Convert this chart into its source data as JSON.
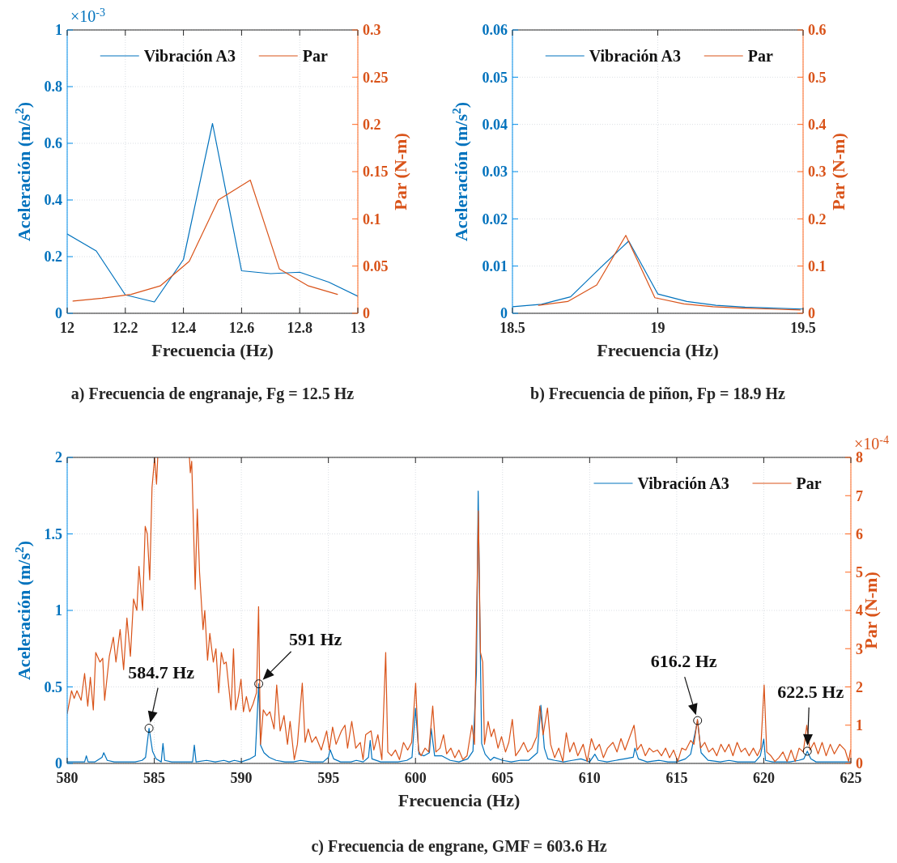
{
  "chart_data": [
    {
      "type": "line",
      "title": "a) Frecuencia de engranaje, Fg = 12.5 Hz",
      "xlabel": "Frecuencia (Hz)",
      "ylabel": "Aceleración (m/s$^{2}$)",
      "y2label": "Par (N-m)",
      "xlim": [
        12,
        13
      ],
      "xticks": [
        12,
        12.2,
        12.4,
        12.6,
        12.8,
        13
      ],
      "ylim": [
        0,
        1
      ],
      "yticks": [
        0,
        0.2,
        0.4,
        0.6,
        0.8,
        1
      ],
      "y2lim": [
        0,
        0.3
      ],
      "y2ticks": [
        0,
        0.05,
        0.1,
        0.15,
        0.2,
        0.25,
        0.3
      ],
      "grid": true,
      "legend": "top",
      "annotations": [
        "×10$^{-3}$"
      ],
      "series": [
        {
          "name": "Vibración A3",
          "color": "#0072bd",
          "x": [
            12.0,
            12.1,
            12.2,
            12.3,
            12.4,
            12.5,
            12.6,
            12.7,
            12.8,
            12.9,
            13.0
          ],
          "values": [
            0.28,
            0.22,
            0.065,
            0.04,
            0.19,
            0.67,
            0.15,
            0.14,
            0.145,
            0.11,
            0.06
          ]
        },
        {
          "name": "Par",
          "color": "#d95319",
          "axis": "y2",
          "x": [
            12.02,
            12.12,
            12.22,
            12.32,
            12.42,
            12.52,
            12.63,
            12.73,
            12.83,
            12.93
          ],
          "values": [
            0.013,
            0.016,
            0.02,
            0.029,
            0.055,
            0.12,
            0.141,
            0.047,
            0.029,
            0.02
          ]
        }
      ]
    },
    {
      "type": "line",
      "title": "b) Frecuencia de piñon, Fp = 18.9 Hz",
      "xlabel": "Frecuencia (Hz)",
      "ylabel": "Aceleración (m/s$^{2}$)",
      "y2label": "Par (N-m)",
      "xlim": [
        18.5,
        19.5
      ],
      "xticks": [
        18.5,
        19,
        19.5
      ],
      "ylim": [
        0,
        0.06
      ],
      "yticks": [
        0,
        0.01,
        0.02,
        0.03,
        0.04,
        0.05,
        0.06
      ],
      "y2lim": [
        0,
        0.6
      ],
      "y2ticks": [
        0,
        0.1,
        0.2,
        0.3,
        0.4,
        0.5,
        0.6
      ],
      "grid": true,
      "legend": "top",
      "series": [
        {
          "name": "Vibración A3",
          "color": "#0072bd",
          "x": [
            18.5,
            18.6,
            18.7,
            18.8,
            18.9,
            19.0,
            19.1,
            19.2,
            19.3,
            19.4,
            19.5
          ],
          "values": [
            0.0014,
            0.0019,
            0.0035,
            0.0095,
            0.0153,
            0.0041,
            0.0025,
            0.0017,
            0.0013,
            0.0011,
            0.0009
          ]
        },
        {
          "name": "Par",
          "color": "#d95319",
          "axis": "y2",
          "x": [
            18.59,
            18.69,
            18.79,
            18.89,
            18.99,
            19.09,
            19.19,
            19.29,
            19.39,
            19.49
          ],
          "values": [
            0.017,
            0.025,
            0.06,
            0.165,
            0.033,
            0.02,
            0.014,
            0.011,
            0.009,
            0.007
          ]
        }
      ]
    },
    {
      "type": "line",
      "title": "c) Frecuencia de engrane, GMF = 603.6 Hz",
      "xlabel": "Frecuencia (Hz)",
      "ylabel": "Aceleración (m/s$^{2}$)",
      "y2label": "Par (N-m)",
      "xlim": [
        580,
        625
      ],
      "xticks": [
        580,
        585,
        590,
        595,
        600,
        605,
        610,
        615,
        620,
        625
      ],
      "ylim": [
        0,
        2
      ],
      "yticks": [
        0,
        0.5,
        1,
        1.5,
        2
      ],
      "y2lim": [
        0,
        8
      ],
      "y2ticks": [
        0,
        1,
        2,
        3,
        4,
        5,
        6,
        7,
        8
      ],
      "grid": true,
      "legend": "top right",
      "annotations": [
        "×10$^{-4}$",
        {
          "text": "584.7 Hz",
          "x": 584.7,
          "y": 0.23
        },
        {
          "text": "591 Hz",
          "x": 591.0,
          "y": 0.52
        },
        {
          "text": "616.2 Hz",
          "x": 616.2,
          "y": 0.28
        },
        {
          "text": "622.5 Hz",
          "x": 622.5,
          "y": 0.08
        }
      ],
      "series": [
        {
          "name": "Vibración A3",
          "color": "#0072bd",
          "x": [
            580.0,
            580.5,
            581.0,
            581.1,
            581.2,
            581.6,
            582.0,
            582.1,
            582.3,
            582.7,
            583.3,
            583.9,
            584.3,
            584.5,
            584.7,
            584.9,
            585.1,
            585.4,
            585.5,
            585.6,
            586.0,
            586.5,
            587.2,
            587.3,
            587.4,
            588.0,
            588.5,
            589.0,
            589.3,
            589.6,
            590.0,
            590.5,
            590.8,
            591.0,
            591.1,
            591.3,
            591.6,
            592.0,
            592.5,
            593.0,
            593.4,
            594.0,
            594.7,
            595.0,
            595.1,
            595.3,
            595.7,
            596.3,
            596.6,
            597.0,
            597.3,
            597.4,
            597.5,
            598.0,
            598.5,
            599.0,
            599.5,
            599.8,
            600.0,
            600.2,
            600.5,
            600.8,
            600.9,
            601.1,
            601.5,
            602.0,
            602.5,
            603.0,
            603.3,
            603.5,
            603.6,
            603.7,
            603.8,
            604.0,
            604.3,
            604.5,
            605.0,
            605.5,
            606.0,
            606.5,
            607.0,
            607.2,
            607.4,
            607.6,
            608.0,
            608.5,
            609.0,
            609.5,
            610.0,
            610.3,
            610.5,
            611.0,
            611.5,
            612.0,
            612.5,
            612.6,
            612.8,
            613.3,
            614.0,
            614.5,
            615.0,
            615.5,
            615.8,
            616.2,
            616.4,
            616.8,
            617.5,
            618.0,
            618.5,
            619.0,
            619.5,
            619.8,
            620.0,
            620.1,
            620.5,
            621.0,
            621.5,
            622.0,
            622.3,
            622.5,
            622.7,
            623.0,
            623.5,
            624.0,
            624.5,
            625.0
          ],
          "values": [
            0.01,
            0.01,
            0.01,
            0.05,
            0.01,
            0.01,
            0.04,
            0.07,
            0.02,
            0.01,
            0.01,
            0.01,
            0.02,
            0.04,
            0.23,
            0.08,
            0.03,
            0.01,
            0.13,
            0.02,
            0.01,
            0.01,
            0.01,
            0.12,
            0.01,
            0.02,
            0.01,
            0.02,
            0.01,
            0.02,
            0.01,
            0.03,
            0.05,
            0.52,
            0.12,
            0.07,
            0.04,
            0.02,
            0.01,
            0.01,
            0.02,
            0.01,
            0.01,
            0.04,
            0.09,
            0.03,
            0.01,
            0.01,
            0.02,
            0.01,
            0.04,
            0.15,
            0.03,
            0.01,
            0.01,
            0.01,
            0.02,
            0.04,
            0.36,
            0.06,
            0.05,
            0.07,
            0.23,
            0.05,
            0.05,
            0.02,
            0.01,
            0.03,
            0.08,
            0.6,
            1.78,
            0.9,
            0.13,
            0.06,
            0.02,
            0.04,
            0.02,
            0.01,
            0.02,
            0.02,
            0.07,
            0.38,
            0.1,
            0.03,
            0.02,
            0.01,
            0.02,
            0.03,
            0.01,
            0.06,
            0.02,
            0.01,
            0.02,
            0.03,
            0.04,
            0.1,
            0.03,
            0.01,
            0.02,
            0.01,
            0.01,
            0.03,
            0.06,
            0.28,
            0.07,
            0.02,
            0.01,
            0.02,
            0.01,
            0.01,
            0.01,
            0.05,
            0.16,
            0.02,
            0.01,
            0.01,
            0.01,
            0.02,
            0.03,
            0.08,
            0.03,
            0.01,
            0.01,
            0.01,
            0.01,
            0.01
          ]
        },
        {
          "name": "Par",
          "color": "#d95319",
          "axis": "y2",
          "x": [
            580.0,
            580.25,
            580.4,
            580.56,
            580.8,
            581.0,
            581.18,
            581.33,
            581.5,
            581.64,
            581.88,
            582.04,
            582.15,
            582.42,
            582.65,
            582.8,
            583.04,
            583.24,
            583.43,
            583.63,
            583.81,
            584.0,
            584.12,
            584.33,
            584.48,
            584.6,
            584.74,
            584.87,
            585.02,
            585.13,
            585.2,
            586.0,
            587.02,
            587.07,
            587.15,
            587.35,
            587.47,
            587.6,
            587.8,
            587.9,
            588.06,
            588.19,
            588.39,
            588.54,
            588.7,
            588.85,
            589.0,
            589.13,
            589.29,
            589.41,
            589.55,
            589.67,
            589.83,
            589.98,
            590.12,
            590.29,
            590.48,
            590.67,
            590.87,
            590.99,
            591.1,
            591.26,
            591.46,
            591.64,
            591.88,
            592.03,
            592.23,
            592.45,
            592.65,
            592.8,
            593.04,
            593.22,
            593.5,
            593.66,
            593.84,
            594.05,
            594.28,
            594.59,
            594.9,
            595.05,
            595.24,
            595.44,
            595.75,
            595.95,
            596.1,
            596.34,
            596.57,
            596.83,
            596.99,
            597.14,
            597.45,
            597.61,
            597.84,
            598.07,
            598.29,
            598.41,
            598.62,
            598.85,
            599.08,
            599.31,
            599.55,
            599.78,
            600.01,
            600.17,
            600.32,
            600.55,
            600.76,
            600.99,
            601.17,
            601.41,
            601.61,
            601.79,
            602.03,
            602.26,
            602.49,
            602.72,
            602.96,
            603.24,
            603.39,
            603.61,
            603.73,
            603.86,
            603.96,
            604.17,
            604.35,
            604.51,
            604.74,
            604.94,
            605.17,
            605.36,
            605.56,
            605.75,
            605.98,
            606.21,
            606.45,
            606.68,
            606.96,
            607.14,
            607.33,
            607.58,
            607.76,
            607.99,
            608.23,
            608.46,
            608.66,
            608.86,
            609.09,
            609.32,
            609.63,
            609.86,
            610.1,
            610.33,
            610.56,
            610.79,
            611.03,
            611.34,
            611.57,
            611.8,
            612.03,
            612.27,
            612.55,
            612.73,
            612.96,
            613.2,
            613.43,
            613.66,
            613.89,
            614.13,
            614.36,
            614.59,
            614.82,
            615.06,
            615.29,
            615.52,
            615.8,
            615.99,
            616.19,
            616.37,
            616.61,
            616.84,
            617.07,
            617.3,
            617.54,
            617.77,
            618.0,
            618.23,
            618.47,
            618.7,
            618.93,
            619.16,
            619.4,
            619.63,
            619.83,
            620.02,
            620.17,
            620.41,
            620.64,
            620.87,
            621.1,
            621.34,
            621.57,
            621.8,
            622.03,
            622.27,
            622.47,
            622.65,
            622.89,
            623.12,
            623.35,
            623.58,
            623.82,
            624.05,
            624.36,
            624.67,
            624.87,
            624.98
          ],
          "values": [
            1.3,
            1.9,
            1.7,
            1.9,
            1.65,
            2.35,
            1.5,
            2.25,
            1.4,
            2.9,
            2.65,
            2.75,
            1.65,
            2.8,
            3.3,
            2.65,
            3.5,
            2.45,
            3.8,
            2.8,
            4.3,
            4.0,
            5.15,
            4.0,
            6.2,
            6.0,
            4.8,
            7.2,
            8,
            7.3,
            8,
            null,
            8,
            7.6,
            7.9,
            4.55,
            6.65,
            5.0,
            3.5,
            4.0,
            2.7,
            3.4,
            2.65,
            3.0,
            1.85,
            2.9,
            2.6,
            2.65,
            1.95,
            1.4,
            3.0,
            1.4,
            1.75,
            2.2,
            1.35,
            1.75,
            1.35,
            1.55,
            1.85,
            4.1,
            0.5,
            1.4,
            1.25,
            1.35,
            0.9,
            2.05,
            0.85,
            1.25,
            0.5,
            1.1,
            0.1,
            0.5,
            2.1,
            0.55,
            0.9,
            0.55,
            0.7,
            0.35,
            0.85,
            0.35,
            0.95,
            0.5,
            0.85,
            1.0,
            0.4,
            1.1,
            0.4,
            0.55,
            0.1,
            0.75,
            0.85,
            0.35,
            0.75,
            0.1,
            2.9,
            0.3,
            0.2,
            0.35,
            0.1,
            0.55,
            0.35,
            0.55,
            2.1,
            0.35,
            0.2,
            0.4,
            0.3,
            1.5,
            0.3,
            0.4,
            0.75,
            0.25,
            0.4,
            0.15,
            0.35,
            0.1,
            0.2,
            1.0,
            0.5,
            6.6,
            2.9,
            2.65,
            0.5,
            1.1,
            0.7,
            0.9,
            0.4,
            0.7,
            0.3,
            0.55,
            1.15,
            0.2,
            0.35,
            0.55,
            0.3,
            0.4,
            0.7,
            1.5,
            0.75,
            1.45,
            0.5,
            0.15,
            0.4,
            0.05,
            0.8,
            0.3,
            0.55,
            0.2,
            0.5,
            0.05,
            0.65,
            0.35,
            0.5,
            0.15,
            0.4,
            0.55,
            0.3,
            0.65,
            0.35,
            0.65,
            1.0,
            0.35,
            0.5,
            0.2,
            0.4,
            0.3,
            0.35,
            0.2,
            0.4,
            0.15,
            0.35,
            0.05,
            0.4,
            0.35,
            0.6,
            0.5,
            1.15,
            0.4,
            0.55,
            0.3,
            0.4,
            0.2,
            0.5,
            0.3,
            0.5,
            0.2,
            0.55,
            0.3,
            0.4,
            0.2,
            0.4,
            0.2,
            0.4,
            2.05,
            0.3,
            0.2,
            0.05,
            0.15,
            0.3,
            0.05,
            0.35,
            0.05,
            0.4,
            0.3,
            1.0,
            0.35,
            0.55,
            0.25,
            0.55,
            0.2,
            0.5,
            0.25,
            0.5,
            0.35,
            0.05,
            0.35
          ]
        }
      ]
    }
  ]
}
